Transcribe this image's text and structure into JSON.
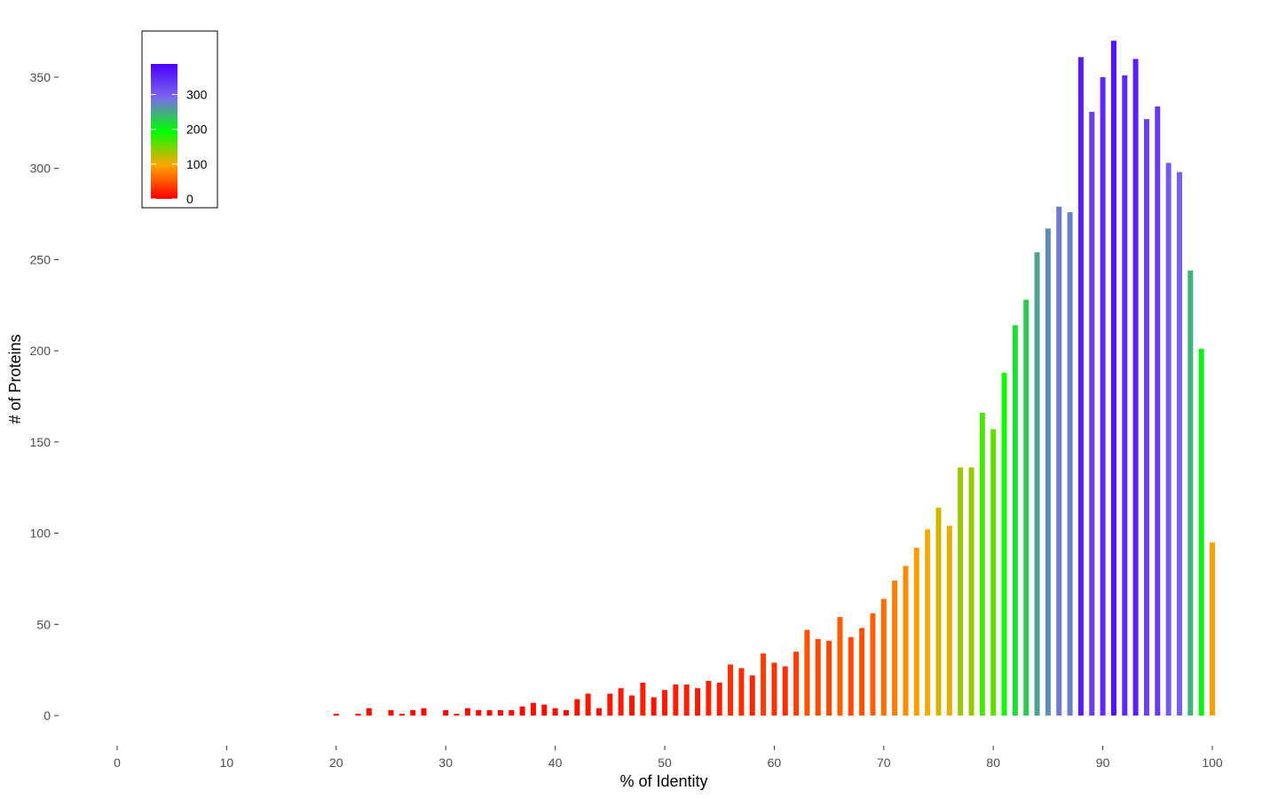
{
  "chart_data": {
    "type": "bar",
    "title": "",
    "xlabel": "% of Identity",
    "ylabel": "# of Proteins",
    "xlim": [
      0,
      100
    ],
    "ylim": [
      0,
      375
    ],
    "x_ticks": [
      "0",
      "10",
      "20",
      "30",
      "40",
      "50",
      "60",
      "70",
      "80",
      "90",
      "100"
    ],
    "y_ticks": [
      "0",
      "50",
      "100",
      "150",
      "200",
      "250",
      "300",
      "350"
    ],
    "grid": false,
    "x": [
      20,
      22,
      23,
      25,
      26,
      27,
      28,
      30,
      31,
      32,
      33,
      34,
      35,
      36,
      37,
      38,
      39,
      40,
      41,
      42,
      43,
      44,
      45,
      46,
      47,
      48,
      49,
      50,
      51,
      52,
      53,
      54,
      55,
      56,
      57,
      58,
      59,
      60,
      61,
      62,
      63,
      64,
      65,
      66,
      67,
      68,
      69,
      70,
      71,
      72,
      73,
      74,
      75,
      76,
      77,
      78,
      79,
      80,
      81,
      82,
      83,
      84,
      85,
      86,
      87,
      88,
      89,
      90,
      91,
      92,
      93,
      94,
      95,
      96,
      97,
      98,
      99,
      100
    ],
    "values": [
      1,
      1,
      4,
      3,
      1,
      3,
      4,
      3,
      1,
      4,
      3,
      3,
      3,
      3,
      5,
      7,
      6,
      4,
      3,
      9,
      12,
      4,
      12,
      15,
      11,
      18,
      10,
      14,
      17,
      17,
      15,
      19,
      18,
      28,
      26,
      22,
      34,
      29,
      27,
      35,
      47,
      42,
      41,
      54,
      43,
      48,
      56,
      64,
      74,
      82,
      92,
      102,
      114,
      104,
      136,
      136,
      166,
      157,
      188,
      214,
      228,
      254,
      267,
      279,
      276,
      361,
      331,
      350,
      370,
      351,
      360,
      327,
      334,
      303,
      298,
      244,
      201,
      95
    ],
    "colorbar": {
      "title": "",
      "labels": [
        "0",
        "100",
        "200",
        "300"
      ],
      "values": [
        0,
        100,
        200,
        300
      ],
      "range": [
        0,
        388
      ],
      "colors": [
        "#ff0000",
        "#ffa500",
        "#00ff00",
        "#7b68ee",
        "#4b00ff"
      ],
      "position": "top-left"
    },
    "palette": {
      "axis": "#333333",
      "tick_text": "#4d4d4d",
      "legend_border": "#000000"
    }
  }
}
